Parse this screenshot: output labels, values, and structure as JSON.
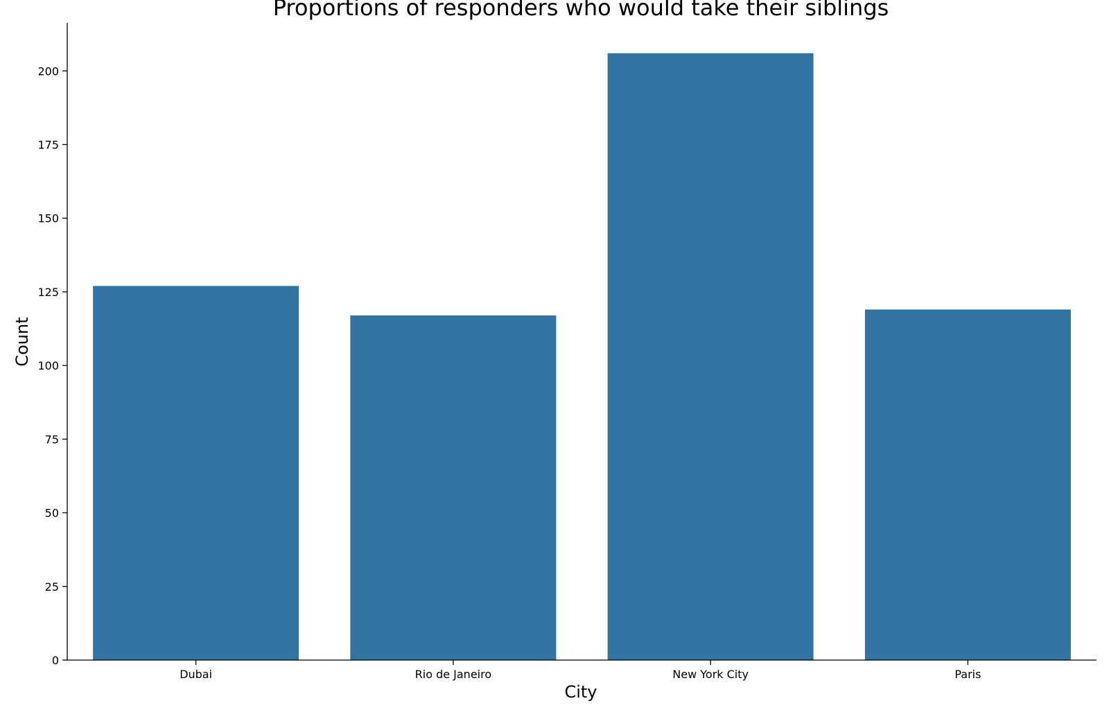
{
  "chart_data": {
    "type": "bar",
    "title": "Proportions of responders who would take their siblings",
    "xlabel": "City",
    "ylabel": "Count",
    "categories": [
      "Dubai",
      "Rio de Janeiro",
      "New York City",
      "Paris"
    ],
    "values": [
      127,
      117,
      206,
      119
    ],
    "ylim": [
      0,
      216.3
    ],
    "yticks": [
      0,
      25,
      50,
      75,
      100,
      125,
      150,
      175,
      200
    ],
    "bar_color": "#3274a1",
    "grid": false,
    "legend": "none"
  }
}
